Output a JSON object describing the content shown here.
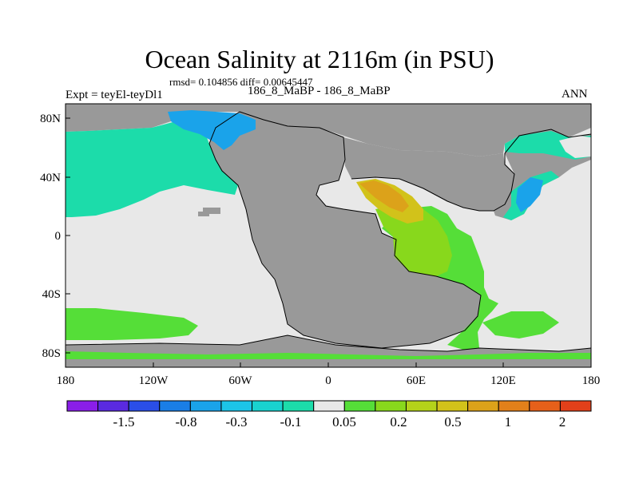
{
  "figure": {
    "title": "Ocean Salinity at 2116m (in PSU)",
    "stats": "rmsd= 0.104856 diff= 0.00645447",
    "expt_label": "Expt = teyEl-teyDl1",
    "subtitle": "186_8_MaBP - 186_8_MaBP",
    "season": "ANN"
  },
  "chart_data": {
    "type": "heatmap",
    "title": "Ocean Salinity at 2116m (in PSU)",
    "x_axis": {
      "ticks": [
        -180,
        -120,
        -60,
        0,
        60,
        120,
        180
      ],
      "labels": [
        "180",
        "120W",
        "60W",
        "0",
        "60E",
        "120E",
        "180"
      ],
      "range": [
        -180,
        180
      ]
    },
    "y_axis": {
      "ticks": [
        80,
        40,
        0,
        -40,
        -80
      ],
      "labels": [
        "80N",
        "40N",
        "0",
        "40S",
        "80S"
      ],
      "range": [
        -90,
        90
      ]
    },
    "colorbar": {
      "colors": [
        "#8a1ee8",
        "#5a2ae0",
        "#2a4ee8",
        "#1a7ee6",
        "#1aa3ea",
        "#1cc4e8",
        "#19d2cf",
        "#1cdcaa",
        "#e8e8e8",
        "#55de38",
        "#88d81c",
        "#b4d21a",
        "#d2c21a",
        "#dca21a",
        "#e2801a",
        "#e6601a",
        "#e2401a"
      ],
      "labels": [
        "-1.5",
        "-0.8",
        "-0.3",
        "-0.1",
        "0.05",
        "0.2",
        "0.5",
        "1",
        "2"
      ]
    },
    "colors": {
      "land": "#999999",
      "near_zero": "#e8e8e8",
      "slightly_negative": "#1cdcaa",
      "negative": "#1aa3ea",
      "positive_low": "#55de38",
      "positive_mid": "#88d81c",
      "positive_high": "#d2c21a",
      "positive_higher": "#dca21a"
    }
  }
}
